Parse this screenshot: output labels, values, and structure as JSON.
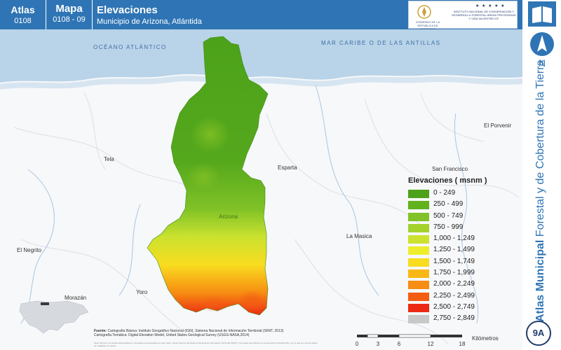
{
  "header": {
    "atlas_label": "Atlas",
    "atlas_code": "0108",
    "mapa_label": "Mapa",
    "mapa_code": "0108 - 09",
    "title": "Elevaciones",
    "subtitle": "Municipio de Arizona, Atlántida",
    "logo_left_text": "GOBIERNO DE LA REPÚBLICA DE HONDURAS",
    "logo_right_stars": "★ ★ ★ ★ ★",
    "logo_right_text": "INSTITUTO NACIONAL DE CONSERVACIÓN Y DESARROLLO FORESTAL ÁREAS PROTEGIDAS Y VIDA SILVESTRE ICF"
  },
  "sidebar": {
    "north_letter": "N",
    "vertical_title_bold": "Atlas Municipal",
    "vertical_title_rest": " Forestal y de Cobertura de la Tierra",
    "badge": "9A"
  },
  "map": {
    "sea_labels": {
      "atlantic": "OCÉANO ATLÁNTICO",
      "caribbean": "MAR CARIBE O DE LAS ANTILLAS"
    },
    "places": {
      "tela": "Tela",
      "esparta": "Esparta",
      "arizona": "Arizona",
      "la_masica": "La Masica",
      "el_porvenir": "El Porvenir",
      "san_francisco": "San Francisco",
      "el_negrito": "El Negrito",
      "morazan": "Morazán",
      "yoro": "Yoro"
    }
  },
  "legend": {
    "title": "Elevaciones ( msnm )",
    "items": [
      {
        "label": "0 - 249",
        "color": "#4ca21a"
      },
      {
        "label": "250 - 499",
        "color": "#62b11f"
      },
      {
        "label": "500 - 749",
        "color": "#80c227"
      },
      {
        "label": "750 - 999",
        "color": "#a3d22c"
      },
      {
        "label": "1,000 - 1,249",
        "color": "#cbe22f"
      },
      {
        "label": "1,250 - 1,499",
        "color": "#eeed2c"
      },
      {
        "label": "1,500 - 1,749",
        "color": "#f8dc1f"
      },
      {
        "label": "1,750 - 1,999",
        "color": "#f9b815"
      },
      {
        "label": "2,000 - 2,249",
        "color": "#f78d12"
      },
      {
        "label": "2,250 - 2,499",
        "color": "#f35d12"
      },
      {
        "label": "2,500 - 2,749",
        "color": "#ec2a14"
      },
      {
        "label": "2,750 - 2,849",
        "color": "#c8c8c8"
      }
    ]
  },
  "footer": {
    "fuente_label": "Fuente:",
    "fuente_line1": "Cartografía Básica: Instituto Geográfico Nacional (IGN), Sistema Nacional de Información Territorial (SINIT, 2013)",
    "fuente_line2": "Cartografía Temática: Digital Elevation Model, United States Geological Survey (USGS-NASA,2014)",
    "nota": "Nota Técnica: Los límites administrativos y forestales representados en este mapa. Tienen fuentes del Sistema Nacional de Información Territorial (SINIT) y las capas del Instituto de Conservación Forestal (ICF), por lo que los mismos deben ser validados en campo."
  },
  "scale": {
    "ticks": [
      "0",
      "3",
      "6",
      "12",
      "18"
    ],
    "unit": "Kilómetros"
  },
  "colors": {
    "header_blue": "#2f75b5",
    "sea": "#b9d3e8",
    "land": "#f7f8fa",
    "roads": "#dfe3ea",
    "rivers": "#aac6df"
  }
}
